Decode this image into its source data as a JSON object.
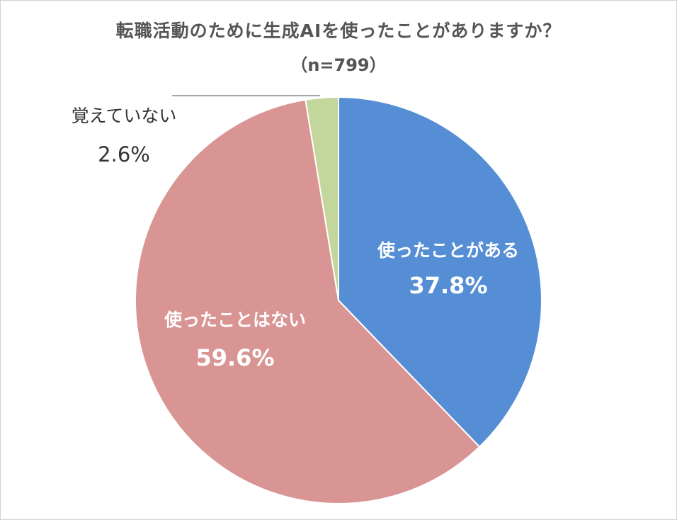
{
  "chart_data": {
    "type": "pie",
    "title": "転職活動のために生成AIを使ったことがありますか？",
    "subtitle": "（n=799）",
    "slices": [
      {
        "label": "使ったことがある",
        "value": 37.8,
        "value_label": "37.8%",
        "color": "#558ED5",
        "label_color": "#ffffff",
        "label_weight": "bold"
      },
      {
        "label": "使ったことはない",
        "value": 59.6,
        "value_label": "59.6%",
        "color": "#D99594",
        "label_color": "#ffffff",
        "label_weight": "bold"
      },
      {
        "label": "覚えていない",
        "value": 2.6,
        "value_label": "2.6%",
        "color": "#C3D69B",
        "label_color": "#333333",
        "label_weight": "normal"
      }
    ],
    "start_angle_deg": 0,
    "direction": "clockwise",
    "legend": "none"
  }
}
